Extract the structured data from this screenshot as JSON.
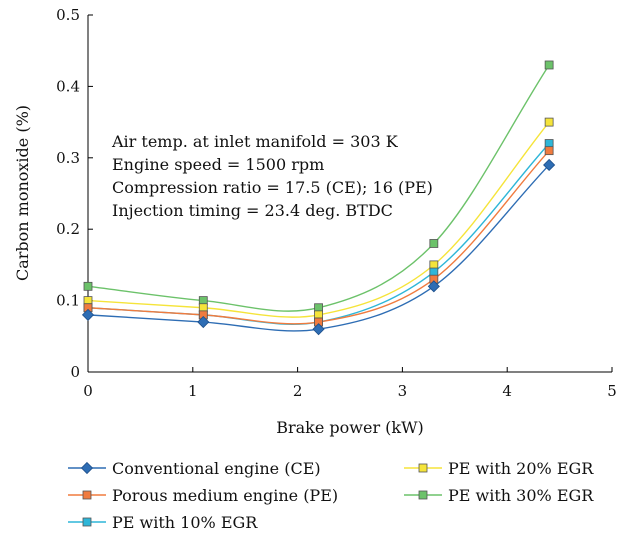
{
  "chart_data": {
    "type": "line",
    "xlabel": "Brake power (kW)",
    "ylabel": "Carbon monoxide (%)",
    "xlim": [
      0,
      5
    ],
    "ylim": [
      0,
      0.5
    ],
    "xticks": [
      "0",
      "1",
      "2",
      "3",
      "4",
      "5"
    ],
    "yticks": [
      "0",
      "0.1",
      "0.2",
      "0.3",
      "0.4",
      "0.5"
    ],
    "grid": false,
    "legend_position": "bottom",
    "x": [
      0,
      1.1,
      2.2,
      3.3,
      4.4
    ],
    "series": [
      {
        "name": "Conventional engine (CE)",
        "values": [
          0.08,
          0.07,
          0.06,
          0.12,
          0.29
        ],
        "color": "#2e6db4",
        "marker": "diamond"
      },
      {
        "name": "Porous medium engine (PE)",
        "values": [
          0.09,
          0.08,
          0.07,
          0.13,
          0.31
        ],
        "color": "#f07b3f",
        "marker": "square"
      },
      {
        "name": "PE with 10% EGR",
        "values": [
          0.09,
          0.08,
          0.07,
          0.14,
          0.32
        ],
        "color": "#2eb6d8",
        "marker": "square"
      },
      {
        "name": "PE with 20% EGR",
        "values": [
          0.1,
          0.09,
          0.08,
          0.15,
          0.35
        ],
        "color": "#f5e43a",
        "marker": "square"
      },
      {
        "name": "PE with 30% EGR",
        "values": [
          0.12,
          0.1,
          0.09,
          0.18,
          0.43
        ],
        "color": "#6cc26a",
        "marker": "square"
      }
    ],
    "annotations": [
      "Air temp. at inlet manifold = 303 K",
      "Engine speed = 1500 rpm",
      "Compression ratio = 17.5 (CE); 16 (PE)",
      "Injection timing = 23.4 deg. BTDC"
    ]
  }
}
